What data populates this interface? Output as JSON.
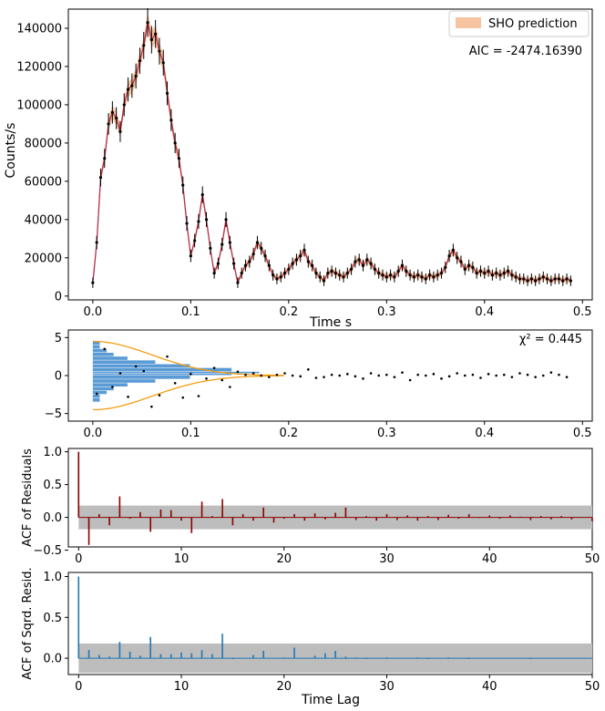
{
  "colors": {
    "band_fill": "#f6c4a0",
    "model_line": "#d62728",
    "model_line2": "#6a51a3",
    "data_points": "#000000",
    "hist_bar": "#5b9bd5",
    "gauss_curve": "#f39c12",
    "acf_resid": "#8b0000",
    "acf_sq": "#1f77b4",
    "conf_band": "#bdbdbd"
  },
  "chart_data": [
    {
      "type": "line",
      "title": "",
      "xlabel": "Time s",
      "ylabel": "Counts/s",
      "xlim": [
        -0.025,
        0.51
      ],
      "ylim": [
        -2000,
        150000
      ],
      "xticks": [
        0.0,
        0.1,
        0.2,
        0.3,
        0.4,
        0.5
      ],
      "xtick_labels": [
        "0.0",
        "0.1",
        "0.2",
        "0.3",
        "0.4",
        "0.5"
      ],
      "yticks": [
        0,
        20000,
        40000,
        60000,
        80000,
        100000,
        120000,
        140000
      ],
      "ytick_labels": [
        "0",
        "20000",
        "40000",
        "60000",
        "80000",
        "100000",
        "120000",
        "140000"
      ],
      "legend": {
        "label": "SHO prediction",
        "position": "top-right"
      },
      "annotation": "AIC = -2474.16390",
      "series": [
        {
          "name": "light curve",
          "x": [
            0.0,
            0.004,
            0.008,
            0.012,
            0.016,
            0.02,
            0.024,
            0.028,
            0.032,
            0.036,
            0.04,
            0.044,
            0.048,
            0.052,
            0.056,
            0.06,
            0.064,
            0.068,
            0.072,
            0.076,
            0.08,
            0.084,
            0.088,
            0.092,
            0.096,
            0.1,
            0.104,
            0.108,
            0.112,
            0.116,
            0.12,
            0.124,
            0.128,
            0.132,
            0.136,
            0.14,
            0.144,
            0.148,
            0.152,
            0.156,
            0.16,
            0.164,
            0.168,
            0.172,
            0.176,
            0.18,
            0.184,
            0.188,
            0.192,
            0.196,
            0.2,
            0.204,
            0.208,
            0.212,
            0.216,
            0.22,
            0.224,
            0.228,
            0.232,
            0.236,
            0.24,
            0.244,
            0.248,
            0.252,
            0.256,
            0.26,
            0.264,
            0.268,
            0.272,
            0.276,
            0.28,
            0.284,
            0.288,
            0.292,
            0.296,
            0.3,
            0.304,
            0.308,
            0.312,
            0.316,
            0.32,
            0.324,
            0.328,
            0.332,
            0.336,
            0.34,
            0.344,
            0.348,
            0.352,
            0.356,
            0.36,
            0.364,
            0.368,
            0.372,
            0.376,
            0.38,
            0.384,
            0.388,
            0.392,
            0.396,
            0.4,
            0.404,
            0.408,
            0.412,
            0.416,
            0.42,
            0.424,
            0.428,
            0.432,
            0.436,
            0.44,
            0.444,
            0.448,
            0.452,
            0.456,
            0.46,
            0.464,
            0.468,
            0.472,
            0.476,
            0.48,
            0.484,
            0.488
          ],
          "y": [
            7000,
            28000,
            62000,
            72000,
            90000,
            96000,
            93000,
            86000,
            100000,
            108000,
            110000,
            115000,
            123000,
            131000,
            143000,
            134000,
            137000,
            128000,
            122000,
            106000,
            92000,
            80000,
            72000,
            58000,
            38000,
            21000,
            29000,
            39000,
            53000,
            40000,
            25000,
            12000,
            17000,
            27000,
            40000,
            28000,
            17000,
            7000,
            12000,
            16000,
            18000,
            22000,
            28000,
            25000,
            21000,
            16000,
            11000,
            9000,
            10000,
            12000,
            14000,
            17000,
            19000,
            21000,
            24000,
            18000,
            16000,
            12000,
            10000,
            8000,
            12000,
            13000,
            12000,
            11000,
            10000,
            12000,
            14000,
            18000,
            19000,
            16000,
            19000,
            17000,
            14000,
            12000,
            11000,
            10000,
            11000,
            10000,
            13000,
            16000,
            13000,
            11000,
            10000,
            11000,
            10000,
            9000,
            11000,
            10000,
            11000,
            12000,
            15000,
            21000,
            24000,
            20000,
            18000,
            14000,
            16000,
            15000,
            12000,
            13000,
            12000,
            13000,
            11000,
            12000,
            11000,
            12000,
            13000,
            11000,
            10000,
            9000,
            9000,
            8000,
            9000,
            8000,
            9000,
            10000,
            9000,
            8000,
            9000,
            9000,
            8000,
            9000,
            8000
          ]
        }
      ]
    },
    {
      "type": "scatter",
      "xlabel": "Time s",
      "ylabel": "",
      "xlim": [
        -0.025,
        0.51
      ],
      "ylim": [
        -6,
        6
      ],
      "xticks": [
        0.0,
        0.1,
        0.2,
        0.3,
        0.4,
        0.5
      ],
      "xtick_labels": [
        "0.0",
        "0.1",
        "0.2",
        "0.3",
        "0.4",
        "0.5"
      ],
      "yticks": [
        -5,
        0,
        5
      ],
      "ytick_labels": [
        "−5",
        "0",
        "5"
      ],
      "annotation": "χ² = 0.445",
      "hist_counts": [
        1,
        1,
        2,
        3,
        5,
        9,
        14,
        20,
        24,
        20,
        14,
        9,
        5,
        3,
        2,
        1,
        1
      ],
      "hist_bins": [
        -3.5,
        -3.0,
        -2.5,
        -2.0,
        -1.5,
        -1.0,
        -0.5,
        0.0,
        0.25,
        0.5,
        1.0,
        1.5,
        2.0,
        2.5,
        3.0,
        3.5,
        4.0
      ],
      "residuals_x": [
        0.004,
        0.012,
        0.02,
        0.028,
        0.036,
        0.044,
        0.052,
        0.06,
        0.068,
        0.076,
        0.084,
        0.092,
        0.1,
        0.108,
        0.116,
        0.124,
        0.132,
        0.14,
        0.148,
        0.156,
        0.164,
        0.172,
        0.18,
        0.188,
        0.196,
        0.204,
        0.212,
        0.22,
        0.228,
        0.236,
        0.244,
        0.252,
        0.26,
        0.268,
        0.276,
        0.284,
        0.292,
        0.3,
        0.308,
        0.316,
        0.324,
        0.332,
        0.34,
        0.348,
        0.356,
        0.364,
        0.372,
        0.38,
        0.388,
        0.396,
        0.404,
        0.412,
        0.42,
        0.428,
        0.436,
        0.444,
        0.452,
        0.46,
        0.468,
        0.476,
        0.484
      ],
      "residuals_y": [
        -2.4,
        3.5,
        -1.5,
        0.3,
        -2.8,
        1.2,
        0.6,
        -4.1,
        -2.6,
        2.5,
        -1.0,
        -2.9,
        0.2,
        -2.7,
        -0.4,
        1.0,
        -0.6,
        -1.5,
        0.5,
        0.1,
        0.3,
        0.0,
        -0.2,
        0.1,
        0.3,
        0.0,
        -0.1,
        0.8,
        -0.3,
        -0.2,
        0.1,
        0.0,
        0.2,
        -0.1,
        -0.4,
        0.3,
        0.0,
        0.1,
        -0.2,
        0.4,
        -0.6,
        0.1,
        0.0,
        0.2,
        -0.4,
        -0.1,
        0.3,
        0.0,
        0.1,
        -0.3,
        0.2,
        0.0,
        0.1,
        -0.2,
        0.3,
        0.1,
        -0.2,
        0.0,
        0.4,
        0.1,
        -0.2
      ]
    },
    {
      "type": "bar",
      "ylabel": "ACF of Residuals",
      "xlabel": "",
      "xlim": [
        -1,
        50
      ],
      "ylim": [
        -0.45,
        1.05
      ],
      "xticks": [
        0,
        10,
        20,
        30,
        40,
        50
      ],
      "xtick_labels": [
        "0",
        "10",
        "20",
        "30",
        "40",
        "50"
      ],
      "yticks": [
        -0.5,
        0.0,
        0.5,
        1.0
      ],
      "ytick_labels": [
        "−0.5",
        "0.0",
        "0.5",
        "1.0"
      ],
      "conf_limit": 0.18,
      "lags": [
        0,
        1,
        2,
        3,
        4,
        5,
        6,
        7,
        8,
        9,
        10,
        11,
        12,
        13,
        14,
        15,
        16,
        17,
        18,
        19,
        20,
        21,
        22,
        23,
        24,
        25,
        26,
        27,
        28,
        29,
        30,
        31,
        32,
        33,
        34,
        35,
        36,
        37,
        38,
        39,
        40,
        41,
        42,
        43,
        44,
        45,
        46,
        47,
        48,
        49,
        50
      ],
      "values": [
        1.0,
        -0.42,
        0.05,
        -0.12,
        0.32,
        -0.02,
        0.08,
        -0.22,
        0.12,
        0.11,
        -0.05,
        -0.24,
        0.24,
        0.02,
        0.28,
        -0.12,
        0.05,
        -0.05,
        0.15,
        -0.08,
        -0.02,
        0.05,
        -0.05,
        0.06,
        -0.03,
        0.07,
        0.15,
        -0.04,
        0.02,
        -0.05,
        0.05,
        -0.04,
        0.03,
        -0.05,
        0.02,
        -0.04,
        0.04,
        -0.02,
        0.05,
        -0.01,
        0.03,
        -0.02,
        0.03,
        0.01,
        -0.04,
        0.02,
        -0.03,
        0.02,
        -0.03,
        0.0,
        -0.06
      ]
    },
    {
      "type": "bar",
      "ylabel": "ACF of Sqrd. Resid.",
      "xlabel": "Time Lag",
      "xlim": [
        -1,
        50
      ],
      "ylim": [
        -0.2,
        1.05
      ],
      "xticks": [
        0,
        10,
        20,
        30,
        40,
        50
      ],
      "xtick_labels": [
        "0",
        "10",
        "20",
        "30",
        "40",
        "50"
      ],
      "yticks": [
        0.0,
        0.5,
        1.0
      ],
      "ytick_labels": [
        "0.0",
        "0.5",
        "1.0"
      ],
      "conf_limit": 0.18,
      "lags": [
        0,
        1,
        2,
        3,
        4,
        5,
        6,
        7,
        8,
        9,
        10,
        11,
        12,
        13,
        14,
        15,
        16,
        17,
        18,
        19,
        20,
        21,
        22,
        23,
        24,
        25,
        26,
        27,
        28,
        29,
        30,
        31,
        32,
        33,
        34,
        35,
        36,
        37,
        38,
        39,
        40,
        41,
        42,
        43,
        44,
        45,
        46,
        47,
        48,
        49,
        50
      ],
      "values": [
        1.0,
        0.1,
        0.04,
        0.02,
        0.2,
        0.08,
        0.03,
        0.26,
        0.05,
        0.05,
        0.07,
        0.06,
        0.1,
        0.05,
        0.3,
        -0.01,
        0.0,
        0.04,
        0.09,
        0.0,
        0.01,
        0.13,
        0.0,
        0.03,
        0.06,
        0.09,
        0.02,
        0.01,
        -0.01,
        0.0,
        0.01,
        0.0,
        0.0,
        0.01,
        -0.01,
        0.0,
        0.01,
        0.0,
        -0.01,
        0.0,
        0.0,
        0.0,
        0.0,
        0.0,
        -0.01,
        0.0,
        0.0,
        0.0,
        0.0,
        0.0,
        -0.01
      ]
    }
  ]
}
